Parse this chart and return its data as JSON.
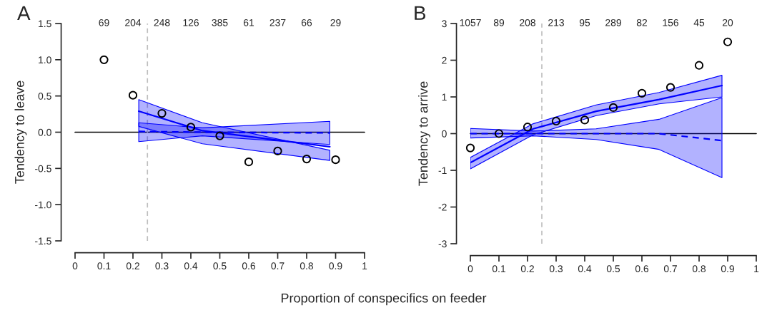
{
  "chart_data": [
    {
      "type": "scatter",
      "title": "A",
      "ylabel": "Tendency to leave",
      "xlabel": "Proportion of conspecifics on feeder",
      "xlim": [
        0,
        1
      ],
      "xticks": [
        0,
        0.1,
        0.2,
        0.3,
        0.4,
        0.5,
        0.6,
        0.7,
        0.8,
        0.9,
        1
      ],
      "ylim": [
        -1.5,
        1.5
      ],
      "yticks": [
        -1.5,
        {
          "value": -1,
          "label": "-1.0"
        },
        -0.5,
        {
          "value": 0,
          "label": "0.0"
        },
        0.5,
        {
          "value": 1,
          "label": "1.0"
        },
        1.5
      ],
      "grid": false,
      "legend": false,
      "series": [
        {
          "marker": "circle",
          "color": "#000000",
          "x": [
            0.1,
            0.2,
            0.3,
            0.4,
            0.5,
            0.6,
            0.7,
            0.8,
            0.9
          ],
          "values": [
            1.0,
            0.51,
            0.26,
            0.07,
            -0.05,
            -0.41,
            -0.26,
            -0.37,
            -0.38
          ]
        },
        {
          "type": "line",
          "line_style": "dashed",
          "color": "#0000ff",
          "x": [
            0.22,
            0.44,
            0.88
          ],
          "values": [
            0.01,
            0.0,
            -0.01
          ],
          "lower": [
            -0.13,
            -0.05,
            -0.17
          ],
          "upper": [
            0.13,
            0.06,
            0.15
          ]
        },
        {
          "type": "line",
          "line_style": "solid",
          "color": "#0000ff",
          "x": [
            0.22,
            0.44,
            0.88
          ],
          "values": [
            0.29,
            0.02,
            -0.2
          ],
          "lower": [
            0.08,
            -0.16,
            -0.39
          ],
          "upper": [
            0.45,
            0.13,
            -0.25
          ]
        }
      ],
      "ref_lines": [
        {
          "axis": "y",
          "value": 0,
          "color": "#000000",
          "line_style": "solid"
        },
        {
          "axis": "x",
          "value": 0.25,
          "color": "#bebebe",
          "line_style": "dashed"
        }
      ],
      "annotations": [
        "69",
        "204",
        "248",
        "126",
        "385",
        "61",
        "237",
        "66",
        "29"
      ]
    },
    {
      "type": "scatter",
      "title": "B",
      "ylabel": "Tendency to arrive",
      "xlim": [
        0,
        1
      ],
      "xticks": [
        0,
        0.1,
        0.2,
        0.3,
        0.4,
        0.5,
        0.6,
        0.7,
        0.8,
        0.9,
        1
      ],
      "ylim": [
        -3,
        3
      ],
      "yticks": [
        -3,
        -2,
        -1,
        0,
        1,
        2,
        3
      ],
      "grid": false,
      "legend": false,
      "series": [
        {
          "marker": "circle",
          "color": "#000000",
          "x": [
            0,
            0.1,
            0.2,
            0.3,
            0.4,
            0.5,
            0.6,
            0.7,
            0.8,
            0.9
          ],
          "values": [
            -0.39,
            0.0,
            0.18,
            0.34,
            0.37,
            0.71,
            1.1,
            1.26,
            1.86,
            2.5
          ]
        },
        {
          "type": "line",
          "line_style": "dashed",
          "color": "#0000ff",
          "x": [
            0,
            0.22,
            0.44,
            0.66,
            0.88
          ],
          "values": [
            0,
            0,
            0,
            0,
            -0.19
          ],
          "lower": [
            -0.12,
            -0.06,
            -0.16,
            -0.43,
            -1.2
          ],
          "upper": [
            0.14,
            0.07,
            0.13,
            0.39,
            0.98
          ]
        },
        {
          "type": "line",
          "line_style": "solid",
          "color": "#0000ff",
          "x": [
            0,
            0.22,
            0.44,
            0.66,
            0.88
          ],
          "values": [
            -0.79,
            0.13,
            0.61,
            0.93,
            1.31
          ],
          "lower": [
            -0.96,
            -0.03,
            0.49,
            0.81,
            1.0
          ],
          "upper": [
            -0.65,
            0.27,
            0.78,
            1.12,
            1.59
          ]
        }
      ],
      "ref_lines": [
        {
          "axis": "y",
          "value": 0,
          "color": "#000000",
          "line_style": "solid"
        },
        {
          "axis": "x",
          "value": 0.25,
          "color": "#bebebe",
          "line_style": "dashed"
        }
      ],
      "annotations": [
        "1057",
        "89",
        "208",
        "213",
        "95",
        "289",
        "82",
        "156",
        "45",
        "20"
      ]
    }
  ]
}
